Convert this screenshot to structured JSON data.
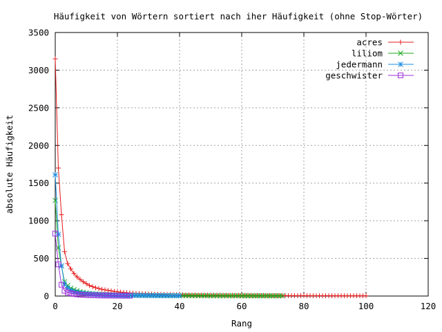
{
  "chart_data": {
    "type": "line",
    "title": "Häufigkeit von Wörtern sortiert nach iher Häufigkeit (ohne Stop-Wörter)",
    "xlabel": "Rang",
    "ylabel": "absolute Häufigkeit",
    "xlim": [
      0,
      120
    ],
    "ylim": [
      0,
      3500
    ],
    "xticks": [
      0,
      20,
      40,
      60,
      80,
      100,
      120
    ],
    "yticks": [
      0,
      500,
      1000,
      1500,
      2000,
      2500,
      3000,
      3500
    ],
    "grid": true,
    "legend_position": "top-right",
    "series": [
      {
        "name": "acres",
        "color": "#e41a1c",
        "marker": "plus",
        "values": [
          3150,
          1700,
          1080,
          590,
          430,
          360,
          300,
          255,
          220,
          190,
          165,
          140,
          125,
          110,
          100,
          90,
          82,
          75,
          68,
          62,
          57,
          52,
          48,
          44,
          41,
          38,
          35,
          33,
          31,
          29,
          27,
          26,
          24,
          23,
          22,
          21,
          20,
          19,
          18,
          17,
          17,
          16,
          15,
          15,
          14,
          14,
          13,
          13,
          12,
          12,
          11,
          11,
          11,
          10,
          10,
          10,
          9,
          9,
          9,
          9,
          8,
          8,
          8,
          8,
          7,
          7,
          7,
          7,
          7,
          6,
          6,
          6,
          6,
          6,
          6,
          5,
          5,
          5,
          5,
          5,
          5,
          5,
          4,
          4,
          4,
          4,
          4,
          4,
          4,
          4,
          3,
          3,
          3,
          3,
          3,
          3,
          3,
          3,
          3,
          3,
          3
        ]
      },
      {
        "name": "liliom",
        "color": "#1aaa1a",
        "marker": "cross",
        "values": [
          1270,
          640,
          400,
          190,
          140,
          105,
          85,
          68,
          55,
          46,
          40,
          34,
          30,
          27,
          24,
          22,
          20,
          18,
          16,
          15,
          14,
          13,
          12,
          11,
          10,
          10,
          9,
          9,
          8,
          8,
          8,
          7,
          7,
          7,
          6,
          6,
          6,
          6,
          5,
          5,
          5,
          5,
          5,
          4,
          4,
          4,
          4,
          4,
          4,
          4,
          3,
          3,
          3,
          3,
          3,
          3,
          3,
          3,
          3,
          3,
          2,
          2,
          2,
          2,
          2,
          2,
          2,
          2,
          2,
          2,
          2,
          2,
          2,
          2
        ]
      },
      {
        "name": "jedermann",
        "color": "#1a8be0",
        "marker": "star",
        "values": [
          1610,
          820,
          400,
          160,
          110,
          80,
          62,
          50,
          42,
          36,
          31,
          27,
          24,
          21,
          19,
          17,
          16,
          15,
          14,
          13,
          12,
          11,
          10,
          10,
          9,
          9,
          8,
          8,
          8,
          7,
          7,
          7,
          6,
          6,
          6,
          6,
          5,
          5,
          5,
          5,
          5
        ]
      },
      {
        "name": "geschwister",
        "color": "#9b30d9",
        "marker": "square",
        "values": [
          830,
          420,
          150,
          70,
          48,
          36,
          28,
          22,
          18,
          15,
          13,
          11,
          10,
          9,
          8,
          7,
          7,
          6,
          6,
          5,
          5,
          5,
          4,
          4,
          4
        ]
      }
    ]
  }
}
